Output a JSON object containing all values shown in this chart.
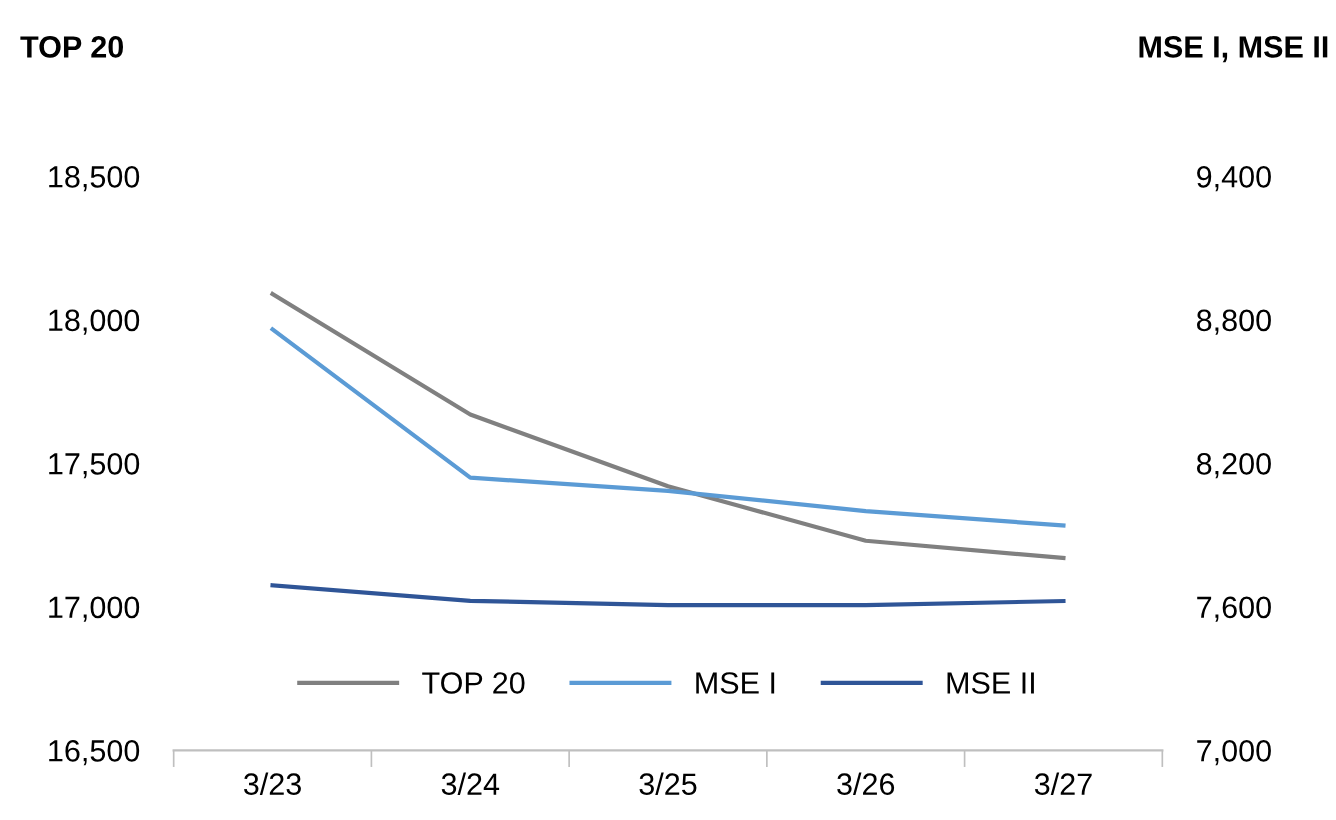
{
  "chart_data": {
    "type": "line",
    "ylabel": "TOP 20",
    "y2label": "MSE I, MSE II",
    "categories": [
      "3/23",
      "3/24",
      "3/25",
      "3/26",
      "3/27"
    ],
    "series": [
      {
        "name": "TOP 20",
        "color": "#808080",
        "values": [
          18090,
          17670,
          17420,
          17230,
          17170
        ]
      },
      {
        "name": "MSE I",
        "color": "#5b9bd5",
        "axis": "y2",
        "values": [
          8760,
          8140,
          8085,
          8000,
          7940
        ]
      },
      {
        "name": "MSE II",
        "color": "#2f5597",
        "axis": "y2",
        "values": [
          7690,
          7625,
          7607,
          7607,
          7624
        ]
      }
    ],
    "ylim": [
      16500,
      18500
    ],
    "yticks": [
      {
        "value": 16500,
        "label": "16,500"
      },
      {
        "value": 17000,
        "label": "17,000"
      },
      {
        "value": 17500,
        "label": "17,500"
      },
      {
        "value": 18000,
        "label": "18,000"
      },
      {
        "value": 18500,
        "label": "18,500"
      }
    ],
    "y2lim": [
      7000,
      9400
    ],
    "y2ticks": [
      {
        "value": 7000,
        "label": "7,000"
      },
      {
        "value": 7600,
        "label": "7,600"
      },
      {
        "value": 8200,
        "label": "8,200"
      },
      {
        "value": 8800,
        "label": "8,800"
      },
      {
        "value": 9400,
        "label": "9,400"
      }
    ],
    "legend": "bottom",
    "grid": false,
    "marker": "none",
    "line_style": "solid"
  }
}
